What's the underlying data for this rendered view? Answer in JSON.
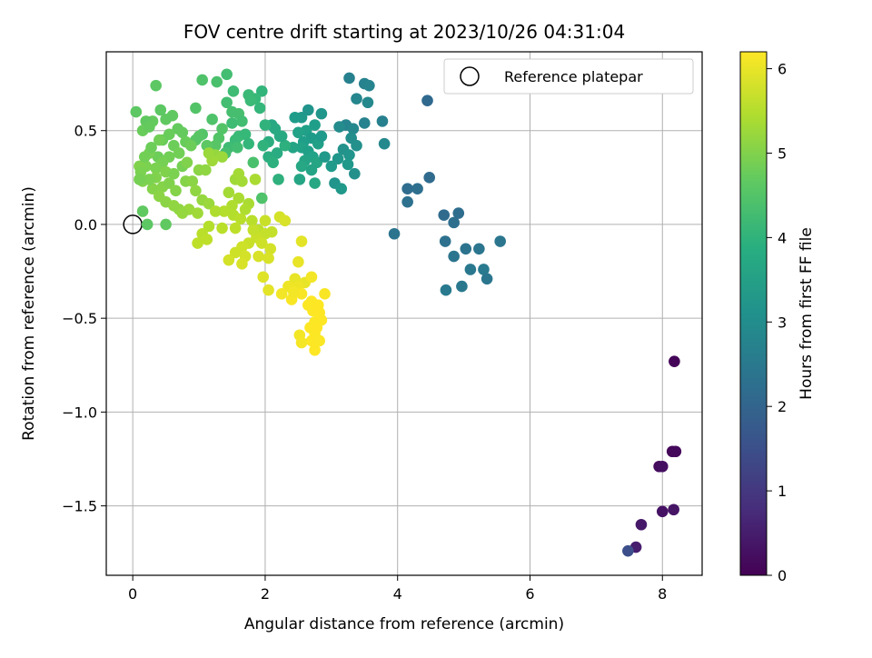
{
  "chart_data": {
    "type": "scatter",
    "title": "FOV centre drift starting at 2023/10/26 04:31:04",
    "xlabel": "Angular distance from reference (arcmin)",
    "ylabel": "Rotation from reference (arcmin)",
    "xlim": [
      -0.4,
      8.6
    ],
    "ylim": [
      -1.87,
      0.92
    ],
    "xticks": [
      0,
      2,
      4,
      6,
      8
    ],
    "yticks": [
      -1.5,
      -1.0,
      -0.5,
      0.0,
      0.5
    ],
    "xtick_labels": [
      "0",
      "2",
      "4",
      "6",
      "8"
    ],
    "ytick_labels": [
      "−1.5",
      "−1.0",
      "−0.5",
      "0.0",
      "0.5"
    ],
    "grid": true,
    "legend": {
      "placement": "top-right",
      "entries": [
        "Reference platepar"
      ]
    },
    "reference_point": {
      "x": 0.0,
      "y": 0.0
    },
    "colorbar": {
      "label": "Hours from first FF file",
      "colormap": "viridis",
      "range": [
        0,
        6.2
      ],
      "ticks": [
        0,
        1,
        2,
        3,
        4,
        5,
        6
      ],
      "tick_labels": [
        "0",
        "1",
        "2",
        "3",
        "4",
        "5",
        "6"
      ]
    },
    "points": [
      [
        8.18,
        -0.73,
        0.05
      ],
      [
        8.15,
        -1.21,
        0.1
      ],
      [
        8.2,
        -1.21,
        0.15
      ],
      [
        7.95,
        -1.29,
        0.2
      ],
      [
        8.0,
        -1.29,
        0.25
      ],
      [
        8.0,
        -1.53,
        0.3
      ],
      [
        8.17,
        -1.52,
        0.35
      ],
      [
        7.68,
        -1.6,
        0.4
      ],
      [
        7.6,
        -1.72,
        0.5
      ],
      [
        7.48,
        -1.74,
        1.5
      ],
      [
        4.45,
        0.66,
        2.1
      ],
      [
        4.48,
        0.25,
        2.15
      ],
      [
        4.15,
        0.19,
        2.2
      ],
      [
        4.3,
        0.19,
        2.25
      ],
      [
        4.15,
        0.12,
        2.3
      ],
      [
        3.95,
        -0.05,
        2.35
      ],
      [
        4.7,
        0.05,
        2.15
      ],
      [
        4.92,
        0.06,
        2.2
      ],
      [
        4.85,
        0.01,
        2.25
      ],
      [
        4.72,
        -0.09,
        2.3
      ],
      [
        5.03,
        -0.13,
        2.35
      ],
      [
        5.23,
        -0.13,
        2.4
      ],
      [
        5.55,
        -0.09,
        2.45
      ],
      [
        4.85,
        -0.17,
        2.4
      ],
      [
        5.1,
        -0.24,
        2.5
      ],
      [
        5.3,
        -0.24,
        2.55
      ],
      [
        5.35,
        -0.29,
        2.45
      ],
      [
        4.97,
        -0.33,
        2.5
      ],
      [
        4.73,
        -0.35,
        2.55
      ],
      [
        3.27,
        0.78,
        2.7
      ],
      [
        3.5,
        0.75,
        2.75
      ],
      [
        3.57,
        0.74,
        2.8
      ],
      [
        3.38,
        0.67,
        2.85
      ],
      [
        3.55,
        0.65,
        2.9
      ],
      [
        3.77,
        0.55,
        2.7
      ],
      [
        3.5,
        0.54,
        2.75
      ],
      [
        3.22,
        0.53,
        2.8
      ],
      [
        3.33,
        0.51,
        2.9
      ],
      [
        3.12,
        0.52,
        3.0
      ],
      [
        3.3,
        0.46,
        3.05
      ],
      [
        3.38,
        0.42,
        3.1
      ],
      [
        3.18,
        0.4,
        3.15
      ],
      [
        3.27,
        0.37,
        3.2
      ],
      [
        3.1,
        0.35,
        3.25
      ],
      [
        3.25,
        0.32,
        3.3
      ],
      [
        3.35,
        0.27,
        3.1
      ],
      [
        3.05,
        0.22,
        3.2
      ],
      [
        3.15,
        0.19,
        3.3
      ],
      [
        3.8,
        0.43,
        2.9
      ],
      [
        3.0,
        0.31,
        3.35
      ],
      [
        2.65,
        0.61,
        3.2
      ],
      [
        2.85,
        0.59,
        3.25
      ],
      [
        2.55,
        0.57,
        3.3
      ],
      [
        2.45,
        0.57,
        3.4
      ],
      [
        2.75,
        0.53,
        3.45
      ],
      [
        2.62,
        0.5,
        3.5
      ],
      [
        2.5,
        0.49,
        3.55
      ],
      [
        2.7,
        0.46,
        3.4
      ],
      [
        2.58,
        0.44,
        3.45
      ],
      [
        2.8,
        0.43,
        3.5
      ],
      [
        2.55,
        0.41,
        3.55
      ],
      [
        2.42,
        0.41,
        3.6
      ],
      [
        2.65,
        0.39,
        3.5
      ],
      [
        2.72,
        0.36,
        3.55
      ],
      [
        2.6,
        0.34,
        3.6
      ],
      [
        2.78,
        0.33,
        3.65
      ],
      [
        2.55,
        0.31,
        3.7
      ],
      [
        2.7,
        0.29,
        3.6
      ],
      [
        2.52,
        0.24,
        3.65
      ],
      [
        2.75,
        0.22,
        3.7
      ],
      [
        2.9,
        0.36,
        3.3
      ],
      [
        2.85,
        0.47,
        3.35
      ],
      [
        2.1,
        0.53,
        3.7
      ],
      [
        2.15,
        0.51,
        3.75
      ],
      [
        2.22,
        0.47,
        3.8
      ],
      [
        2.05,
        0.44,
        3.85
      ],
      [
        2.3,
        0.42,
        3.9
      ],
      [
        2.18,
        0.38,
        3.8
      ],
      [
        2.05,
        0.36,
        3.85
      ],
      [
        2.12,
        0.33,
        3.9
      ],
      [
        2.2,
        0.24,
        3.95
      ],
      [
        1.97,
        0.42,
        4.0
      ],
      [
        2.0,
        0.53,
        4.0
      ],
      [
        2.25,
        0.47,
        3.75
      ],
      [
        1.95,
        0.71,
        4.05
      ],
      [
        1.92,
        0.62,
        4.1
      ],
      [
        1.85,
        0.67,
        4.15
      ],
      [
        1.75,
        0.69,
        4.2
      ],
      [
        1.78,
        0.66,
        4.2
      ],
      [
        1.52,
        0.71,
        4.25
      ],
      [
        1.42,
        0.8,
        4.3
      ],
      [
        1.42,
        0.65,
        4.3
      ],
      [
        1.5,
        0.6,
        4.35
      ],
      [
        1.6,
        0.59,
        4.35
      ],
      [
        1.65,
        0.55,
        4.3
      ],
      [
        1.5,
        0.54,
        4.25
      ],
      [
        1.6,
        0.47,
        4.2
      ],
      [
        1.7,
        0.48,
        4.15
      ],
      [
        1.75,
        0.43,
        4.1
      ],
      [
        1.55,
        0.45,
        4.2
      ],
      [
        1.45,
        0.41,
        4.25
      ],
      [
        1.58,
        0.41,
        4.3
      ],
      [
        1.4,
        0.38,
        4.35
      ],
      [
        1.82,
        0.33,
        4.4
      ],
      [
        1.95,
        0.14,
        4.45
      ],
      [
        1.27,
        0.76,
        4.4
      ],
      [
        1.05,
        0.77,
        4.45
      ],
      [
        1.2,
        0.56,
        4.45
      ],
      [
        1.35,
        0.51,
        4.5
      ],
      [
        1.05,
        0.48,
        4.5
      ],
      [
        1.0,
        0.47,
        4.55
      ],
      [
        0.95,
        0.45,
        4.55
      ],
      [
        1.3,
        0.46,
        4.5
      ],
      [
        1.25,
        0.42,
        4.55
      ],
      [
        0.95,
        0.62,
        4.5
      ],
      [
        1.12,
        0.42,
        4.6
      ],
      [
        0.35,
        0.74,
        4.6
      ],
      [
        0.42,
        0.61,
        4.6
      ],
      [
        0.5,
        0.56,
        4.65
      ],
      [
        0.6,
        0.58,
        4.65
      ],
      [
        0.68,
        0.51,
        4.7
      ],
      [
        0.75,
        0.49,
        4.7
      ],
      [
        0.55,
        0.48,
        4.75
      ],
      [
        0.45,
        0.45,
        4.75
      ],
      [
        0.62,
        0.42,
        4.8
      ],
      [
        0.8,
        0.44,
        4.75
      ],
      [
        0.88,
        0.42,
        4.8
      ],
      [
        0.7,
        0.38,
        4.85
      ],
      [
        0.55,
        0.36,
        4.85
      ],
      [
        0.38,
        0.36,
        4.8
      ],
      [
        0.45,
        0.33,
        4.9
      ],
      [
        0.25,
        0.38,
        4.9
      ],
      [
        0.35,
        0.3,
        4.95
      ],
      [
        0.5,
        0.28,
        5.0
      ],
      [
        0.62,
        0.27,
        4.95
      ],
      [
        0.75,
        0.31,
        4.9
      ],
      [
        0.82,
        0.33,
        5.0
      ],
      [
        0.2,
        0.31,
        4.95
      ],
      [
        0.1,
        0.31,
        5.0
      ],
      [
        0.18,
        0.36,
        4.85
      ],
      [
        0.28,
        0.41,
        4.8
      ],
      [
        0.4,
        0.45,
        4.85
      ],
      [
        0.3,
        0.55,
        4.7
      ],
      [
        0.2,
        0.55,
        4.65
      ],
      [
        0.05,
        0.6,
        4.6
      ],
      [
        0.15,
        0.5,
        4.75
      ],
      [
        0.25,
        0.52,
        4.7
      ],
      [
        0.35,
        0.25,
        5.0
      ],
      [
        0.45,
        0.2,
        5.05
      ],
      [
        0.55,
        0.22,
        5.0
      ],
      [
        0.65,
        0.18,
        5.05
      ],
      [
        0.3,
        0.19,
        5.05
      ],
      [
        0.4,
        0.15,
        5.1
      ],
      [
        0.5,
        0.12,
        5.1
      ],
      [
        0.62,
        0.1,
        5.15
      ],
      [
        0.7,
        0.08,
        5.15
      ],
      [
        0.15,
        0.23,
        5.0
      ],
      [
        0.25,
        0.24,
        4.95
      ],
      [
        0.8,
        0.23,
        5.05
      ],
      [
        0.9,
        0.23,
        5.1
      ],
      [
        0.95,
        0.18,
        5.15
      ],
      [
        1.05,
        0.13,
        5.2
      ],
      [
        1.15,
        0.11,
        5.25
      ],
      [
        0.85,
        0.08,
        5.25
      ],
      [
        0.75,
        0.06,
        5.2
      ],
      [
        0.98,
        0.06,
        5.3
      ],
      [
        0.22,
        0.0,
        4.6
      ],
      [
        0.5,
        0.0,
        4.65
      ],
      [
        0.15,
        0.07,
        4.65
      ],
      [
        0.12,
        0.28,
        4.95
      ],
      [
        0.1,
        0.24,
        4.9
      ],
      [
        1.0,
        0.29,
        5.1
      ],
      [
        1.1,
        0.29,
        5.15
      ],
      [
        1.25,
        0.37,
        5.2
      ],
      [
        1.35,
        0.36,
        5.25
      ],
      [
        1.2,
        0.34,
        5.3
      ],
      [
        1.15,
        0.38,
        5.25
      ],
      [
        1.55,
        0.24,
        5.3
      ],
      [
        1.65,
        0.23,
        5.35
      ],
      [
        1.45,
        0.17,
        5.35
      ],
      [
        1.6,
        0.14,
        5.4
      ],
      [
        1.75,
        0.11,
        5.4
      ],
      [
        1.5,
        0.1,
        5.45
      ],
      [
        1.7,
        0.08,
        5.45
      ],
      [
        1.38,
        0.07,
        5.5
      ],
      [
        1.25,
        0.07,
        5.45
      ],
      [
        1.52,
        0.05,
        5.5
      ],
      [
        1.63,
        0.03,
        5.55
      ],
      [
        1.35,
        -0.02,
        5.55
      ],
      [
        1.15,
        -0.01,
        5.5
      ],
      [
        1.05,
        -0.05,
        5.55
      ],
      [
        1.12,
        -0.08,
        5.6
      ],
      [
        0.98,
        -0.1,
        5.6
      ],
      [
        1.8,
        0.02,
        5.55
      ],
      [
        1.9,
        -0.03,
        5.6
      ],
      [
        2.0,
        -0.05,
        5.65
      ],
      [
        2.1,
        -0.04,
        5.65
      ],
      [
        1.87,
        -0.07,
        5.7
      ],
      [
        1.75,
        -0.1,
        5.7
      ],
      [
        1.65,
        -0.12,
        5.75
      ],
      [
        1.55,
        -0.15,
        5.75
      ],
      [
        1.45,
        -0.19,
        5.8
      ],
      [
        1.7,
        -0.17,
        5.8
      ],
      [
        1.65,
        -0.21,
        5.85
      ],
      [
        1.95,
        -0.1,
        5.75
      ],
      [
        2.08,
        -0.13,
        5.8
      ],
      [
        1.9,
        -0.17,
        5.85
      ],
      [
        2.0,
        0.02,
        5.7
      ],
      [
        2.22,
        0.04,
        5.8
      ],
      [
        2.3,
        0.02,
        5.85
      ],
      [
        1.97,
        -0.28,
        5.9
      ],
      [
        2.05,
        -0.35,
        5.95
      ],
      [
        1.55,
        -0.02,
        5.6
      ],
      [
        1.6,
        0.27,
        5.35
      ],
      [
        1.85,
        0.24,
        5.4
      ],
      [
        2.05,
        -0.18,
        5.85
      ],
      [
        1.82,
        -0.03,
        5.65
      ],
      [
        2.55,
        -0.09,
        5.95
      ],
      [
        2.45,
        -0.29,
        6.0
      ],
      [
        2.6,
        -0.31,
        6.0
      ],
      [
        2.35,
        -0.33,
        6.05
      ],
      [
        2.5,
        -0.33,
        6.05
      ],
      [
        2.7,
        -0.28,
        6.1
      ],
      [
        2.25,
        -0.37,
        6.1
      ],
      [
        2.4,
        -0.4,
        6.15
      ],
      [
        2.55,
        -0.37,
        6.15
      ],
      [
        2.7,
        -0.41,
        6.2
      ],
      [
        2.8,
        -0.43,
        6.2
      ],
      [
        2.9,
        -0.37,
        6.15
      ],
      [
        2.72,
        -0.46,
        6.2
      ],
      [
        2.82,
        -0.47,
        6.2
      ],
      [
        2.75,
        -0.52,
        6.18
      ],
      [
        2.68,
        -0.55,
        6.2
      ],
      [
        2.85,
        -0.51,
        6.2
      ],
      [
        2.75,
        -0.58,
        6.19
      ],
      [
        2.7,
        -0.62,
        6.2
      ],
      [
        2.82,
        -0.62,
        6.18
      ],
      [
        2.75,
        -0.67,
        6.2
      ],
      [
        2.52,
        -0.59,
        6.1
      ],
      [
        2.55,
        -0.63,
        6.12
      ],
      [
        2.5,
        -0.2,
        6.0
      ],
      [
        2.43,
        -0.36,
        6.1
      ],
      [
        2.65,
        -0.43,
        6.18
      ],
      [
        2.78,
        -0.55,
        6.2
      ]
    ]
  }
}
